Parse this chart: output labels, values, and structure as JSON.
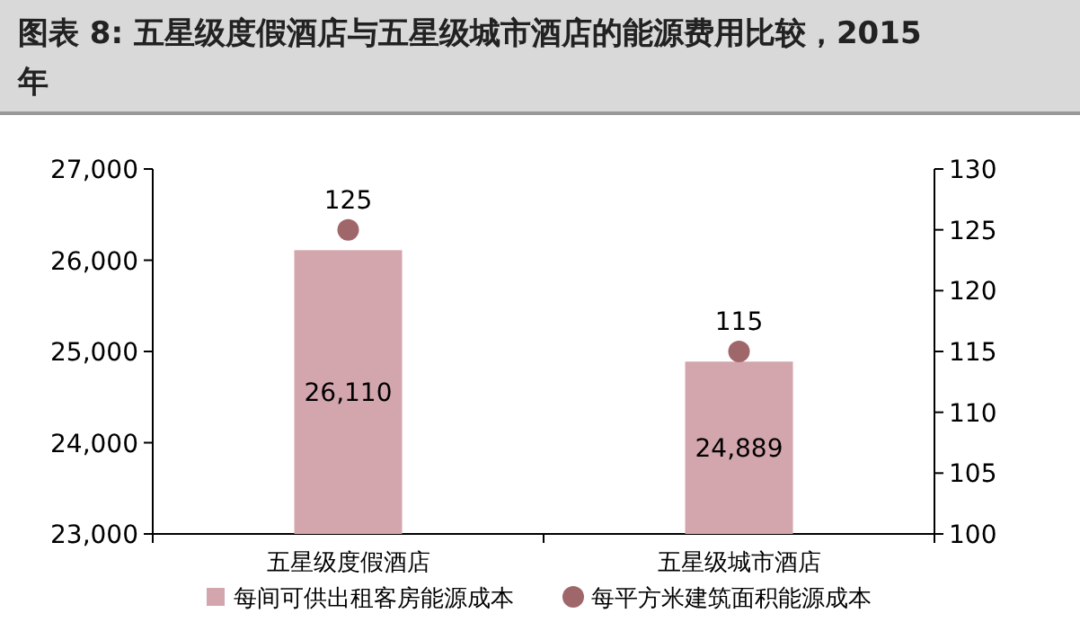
{
  "chart_data": {
    "type": "bar",
    "title": "图表 8: 五星级度假酒店与五星级城市酒店的能源费用比较，2015年",
    "categories": [
      "五星级度假酒店",
      "五星级城市酒店"
    ],
    "series": [
      {
        "name": "每间可供出租客房能源成本",
        "color": "#d3a6ad",
        "values": [
          26110,
          24889
        ],
        "value_labels": [
          "26,110",
          "24,889"
        ]
      },
      {
        "name": "每平方米建筑面积能源成本",
        "type": "scatter",
        "axis": "y2",
        "color": "#a0676b",
        "values": [
          125,
          115
        ],
        "value_labels": [
          "125",
          "115"
        ]
      }
    ],
    "ylim": [
      23000,
      27000
    ],
    "yticks": [
      {
        "value": 23000,
        "label": "23,000"
      },
      {
        "value": 24000,
        "label": "24,000"
      },
      {
        "value": 25000,
        "label": "25,000"
      },
      {
        "value": 26000,
        "label": "26,000"
      },
      {
        "value": 27000,
        "label": "27,000"
      }
    ],
    "y2lim": [
      100,
      130
    ],
    "y2ticks": [
      100,
      105,
      110,
      115,
      120,
      125,
      130
    ],
    "legend": "bottom",
    "marker": "circle",
    "grid": false
  }
}
